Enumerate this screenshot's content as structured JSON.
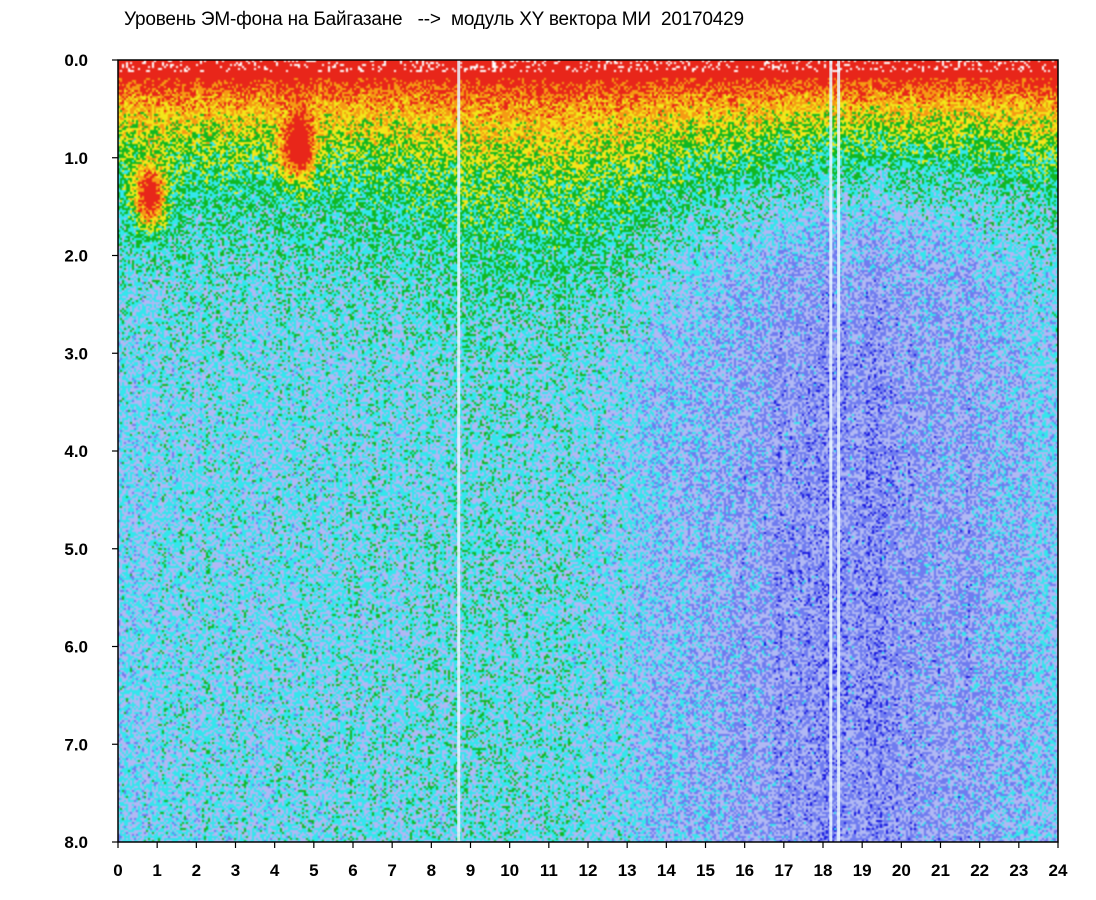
{
  "chart_data": {
    "type": "heatmap",
    "title": "Уровень ЭМ-фона на Байгазане   -->  модуль XY вектора МИ  20170429",
    "xlabel": "",
    "ylabel": "",
    "xlim": [
      0,
      24
    ],
    "ylim": [
      0,
      8
    ],
    "y_inverted": true,
    "x_ticks": [
      "0",
      "1",
      "2",
      "3",
      "4",
      "5",
      "6",
      "7",
      "8",
      "9",
      "10",
      "11",
      "12",
      "13",
      "14",
      "15",
      "16",
      "17",
      "18",
      "19",
      "20",
      "21",
      "22",
      "23",
      "24"
    ],
    "y_ticks": [
      "0.0",
      "1.0",
      "2.0",
      "3.0",
      "4.0",
      "5.0",
      "6.0",
      "7.0",
      "8.0"
    ],
    "colormap": [
      "#1a1ae0",
      "#6f7cf0",
      "#b0b8f4",
      "#33e6ec",
      "#11b822",
      "#f2e61a",
      "#f59a14",
      "#e8261a",
      "#ffffff"
    ],
    "grid": false,
    "legend": "none",
    "features": {
      "vertical_gaps_hours": [
        8.7,
        18.2,
        18.4
      ],
      "hot_spots": [
        {
          "hour": 0.8,
          "value": 1.4,
          "level": "red"
        },
        {
          "hour": 4.6,
          "value": 0.9,
          "level": "red"
        }
      ]
    }
  }
}
